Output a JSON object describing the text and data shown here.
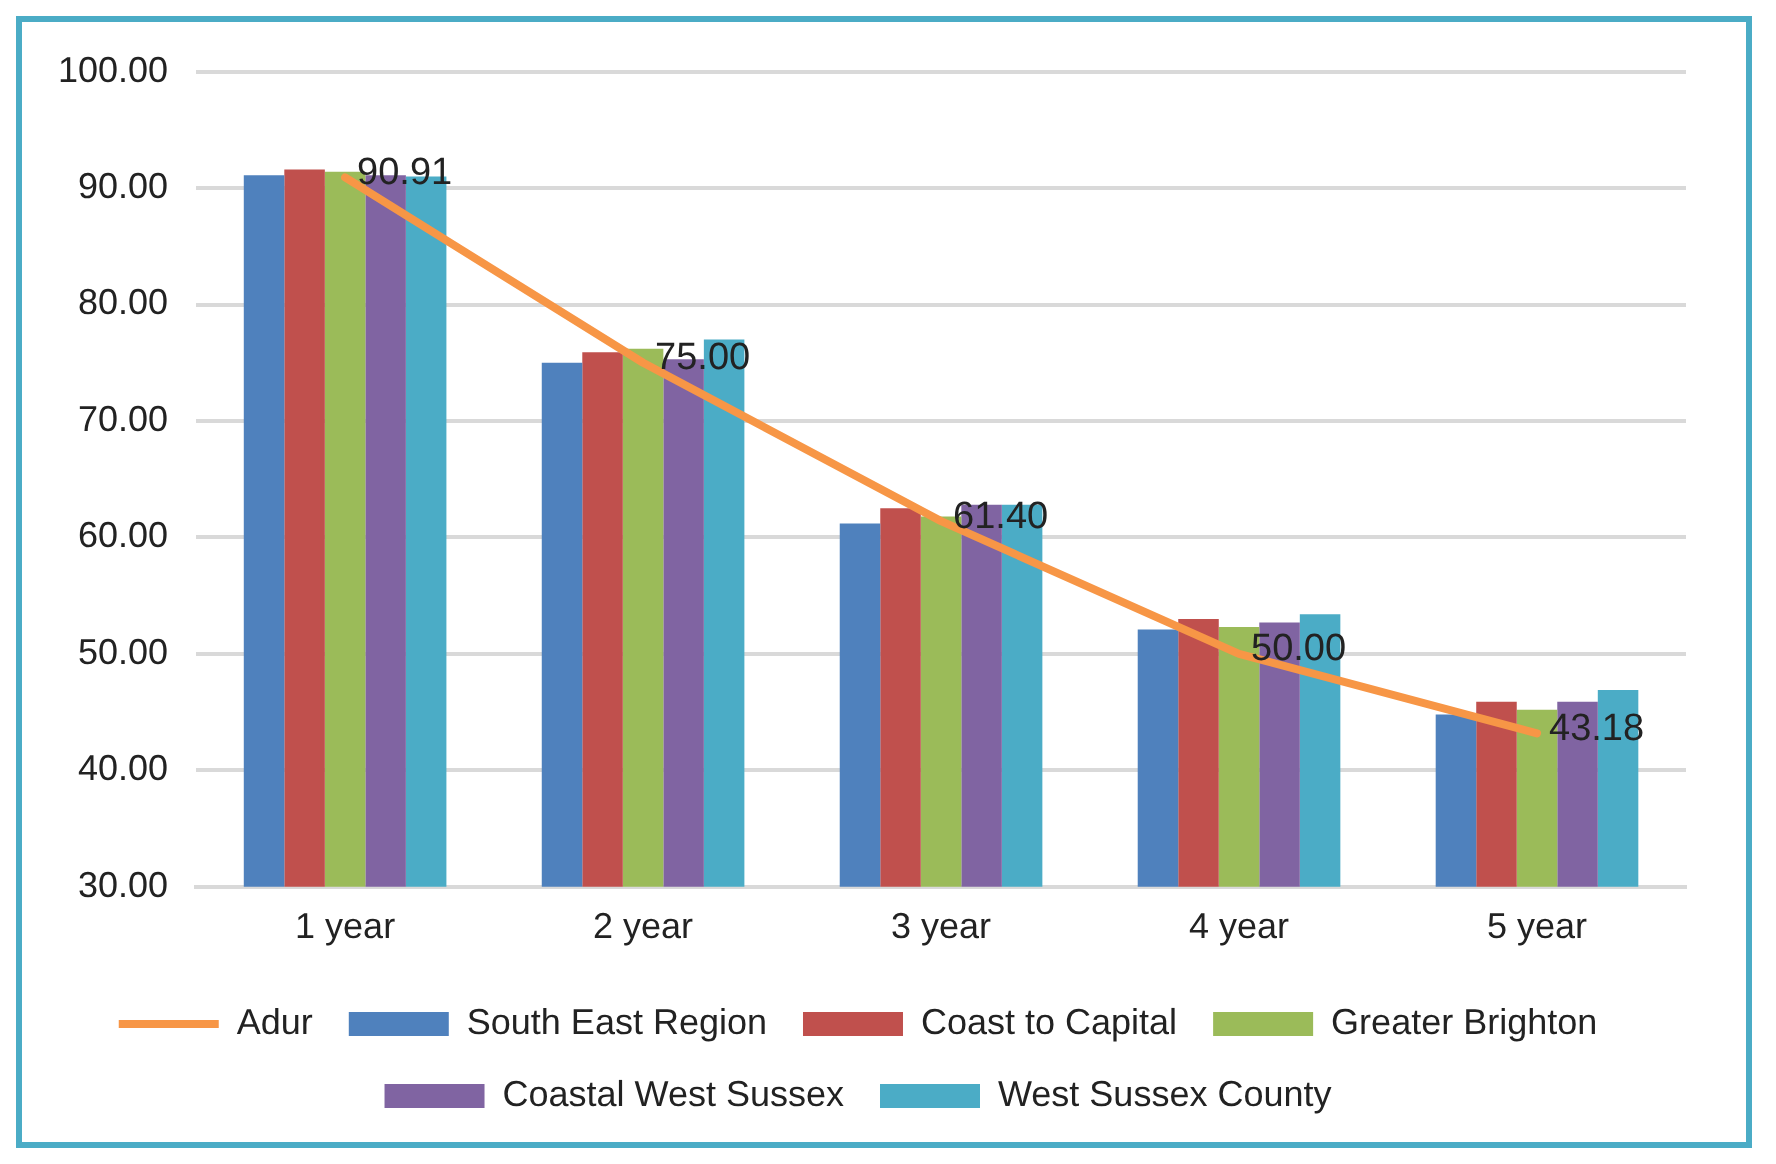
{
  "chart_data": {
    "type": "bar",
    "categories": [
      "1 year",
      "2 year",
      "3 year",
      "4 year",
      "5 year"
    ],
    "series": [
      {
        "name": "South East Region",
        "color": "#4f81bd",
        "values": [
          91.1,
          75.0,
          61.2,
          52.1,
          44.8
        ]
      },
      {
        "name": "Coast to Capital",
        "color": "#c0504d",
        "values": [
          91.6,
          75.9,
          62.5,
          53.0,
          45.9
        ]
      },
      {
        "name": "Greater Brighton",
        "color": "#9bbb59",
        "values": [
          91.4,
          76.2,
          61.8,
          52.3,
          45.2
        ]
      },
      {
        "name": "Coastal West Sussex",
        "color": "#8064a2",
        "values": [
          91.1,
          75.3,
          62.8,
          52.7,
          45.9
        ]
      },
      {
        "name": "West Sussex County",
        "color": "#4bacc6",
        "values": [
          91.0,
          77.0,
          62.8,
          53.4,
          46.9
        ]
      },
      {
        "name": "Adur",
        "type": "line",
        "color": "#f79646",
        "values": [
          90.91,
          75.0,
          61.4,
          50.0,
          43.18
        ],
        "value_labels": [
          "90.91",
          "75.00",
          "61.40",
          "50.00",
          "43.18"
        ]
      }
    ],
    "ylim": [
      30,
      100
    ],
    "yticks": [
      {
        "value": 30,
        "label": "30.00"
      },
      {
        "value": 40,
        "label": "40.00"
      },
      {
        "value": 50,
        "label": "50.00"
      },
      {
        "value": 60,
        "label": "60.00"
      },
      {
        "value": 70,
        "label": "70.00"
      },
      {
        "value": 80,
        "label": "80.00"
      },
      {
        "value": 90,
        "label": "90.00"
      },
      {
        "value": 100,
        "label": "100.00"
      }
    ],
    "grid": "y",
    "legend": "bottom",
    "marker": "none",
    "line_style": "solid"
  }
}
